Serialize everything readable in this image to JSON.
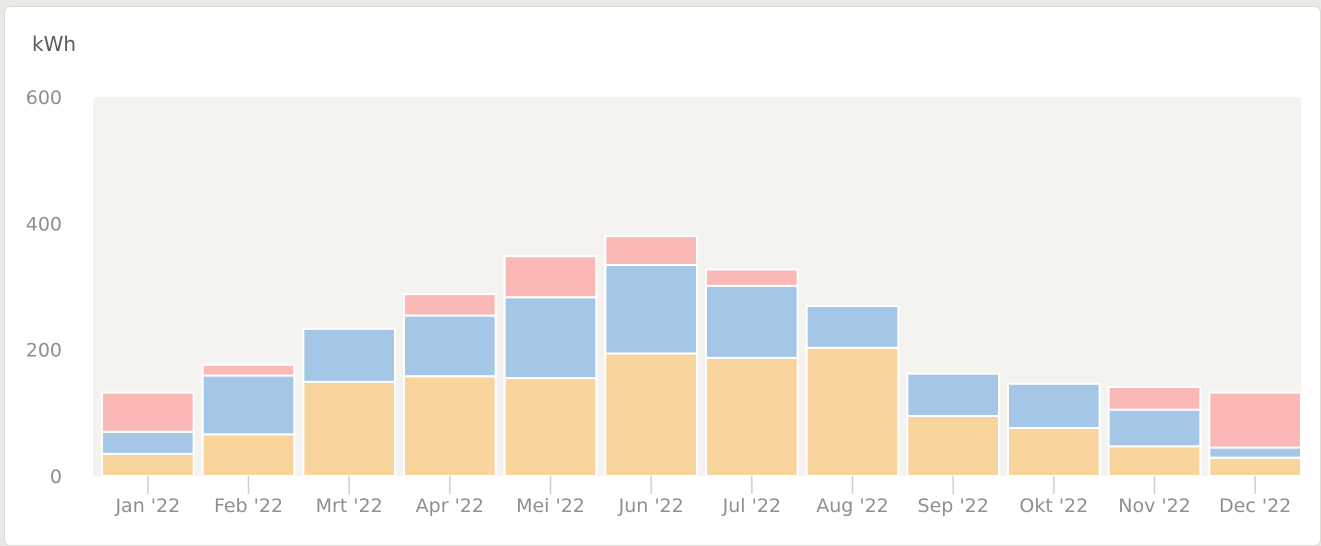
{
  "chart_data": {
    "type": "bar",
    "stacked": true,
    "ylabel": "kWh",
    "ylim": [
      0,
      600
    ],
    "yticks": [
      0,
      200,
      400,
      600
    ],
    "grid": false,
    "categories": [
      "Jan '22",
      "Feb '22",
      "Mrt '22",
      "Apr '22",
      "Mei '22",
      "Jun '22",
      "Jul '22",
      "Aug '22",
      "Sep '22",
      "Okt '22",
      "Nov '22",
      "Dec '22"
    ],
    "series": [
      {
        "color": "#f9d49d",
        "values": [
          35,
          66,
          149,
          158,
          155,
          194,
          187,
          203,
          95,
          76,
          47,
          29
        ]
      },
      {
        "color": "#a5c7e7",
        "values": [
          35,
          93,
          84,
          96,
          128,
          140,
          114,
          66,
          67,
          70,
          58,
          16
        ]
      },
      {
        "color": "#fab8b7",
        "values": [
          62,
          17,
          0,
          34,
          65,
          46,
          26,
          0,
          0,
          0,
          36,
          87
        ]
      }
    ]
  },
  "colors": {
    "plot_background": "#f4f3f0",
    "tick_text": "#8f8f8f",
    "unit_text": "#5b5b5b"
  }
}
